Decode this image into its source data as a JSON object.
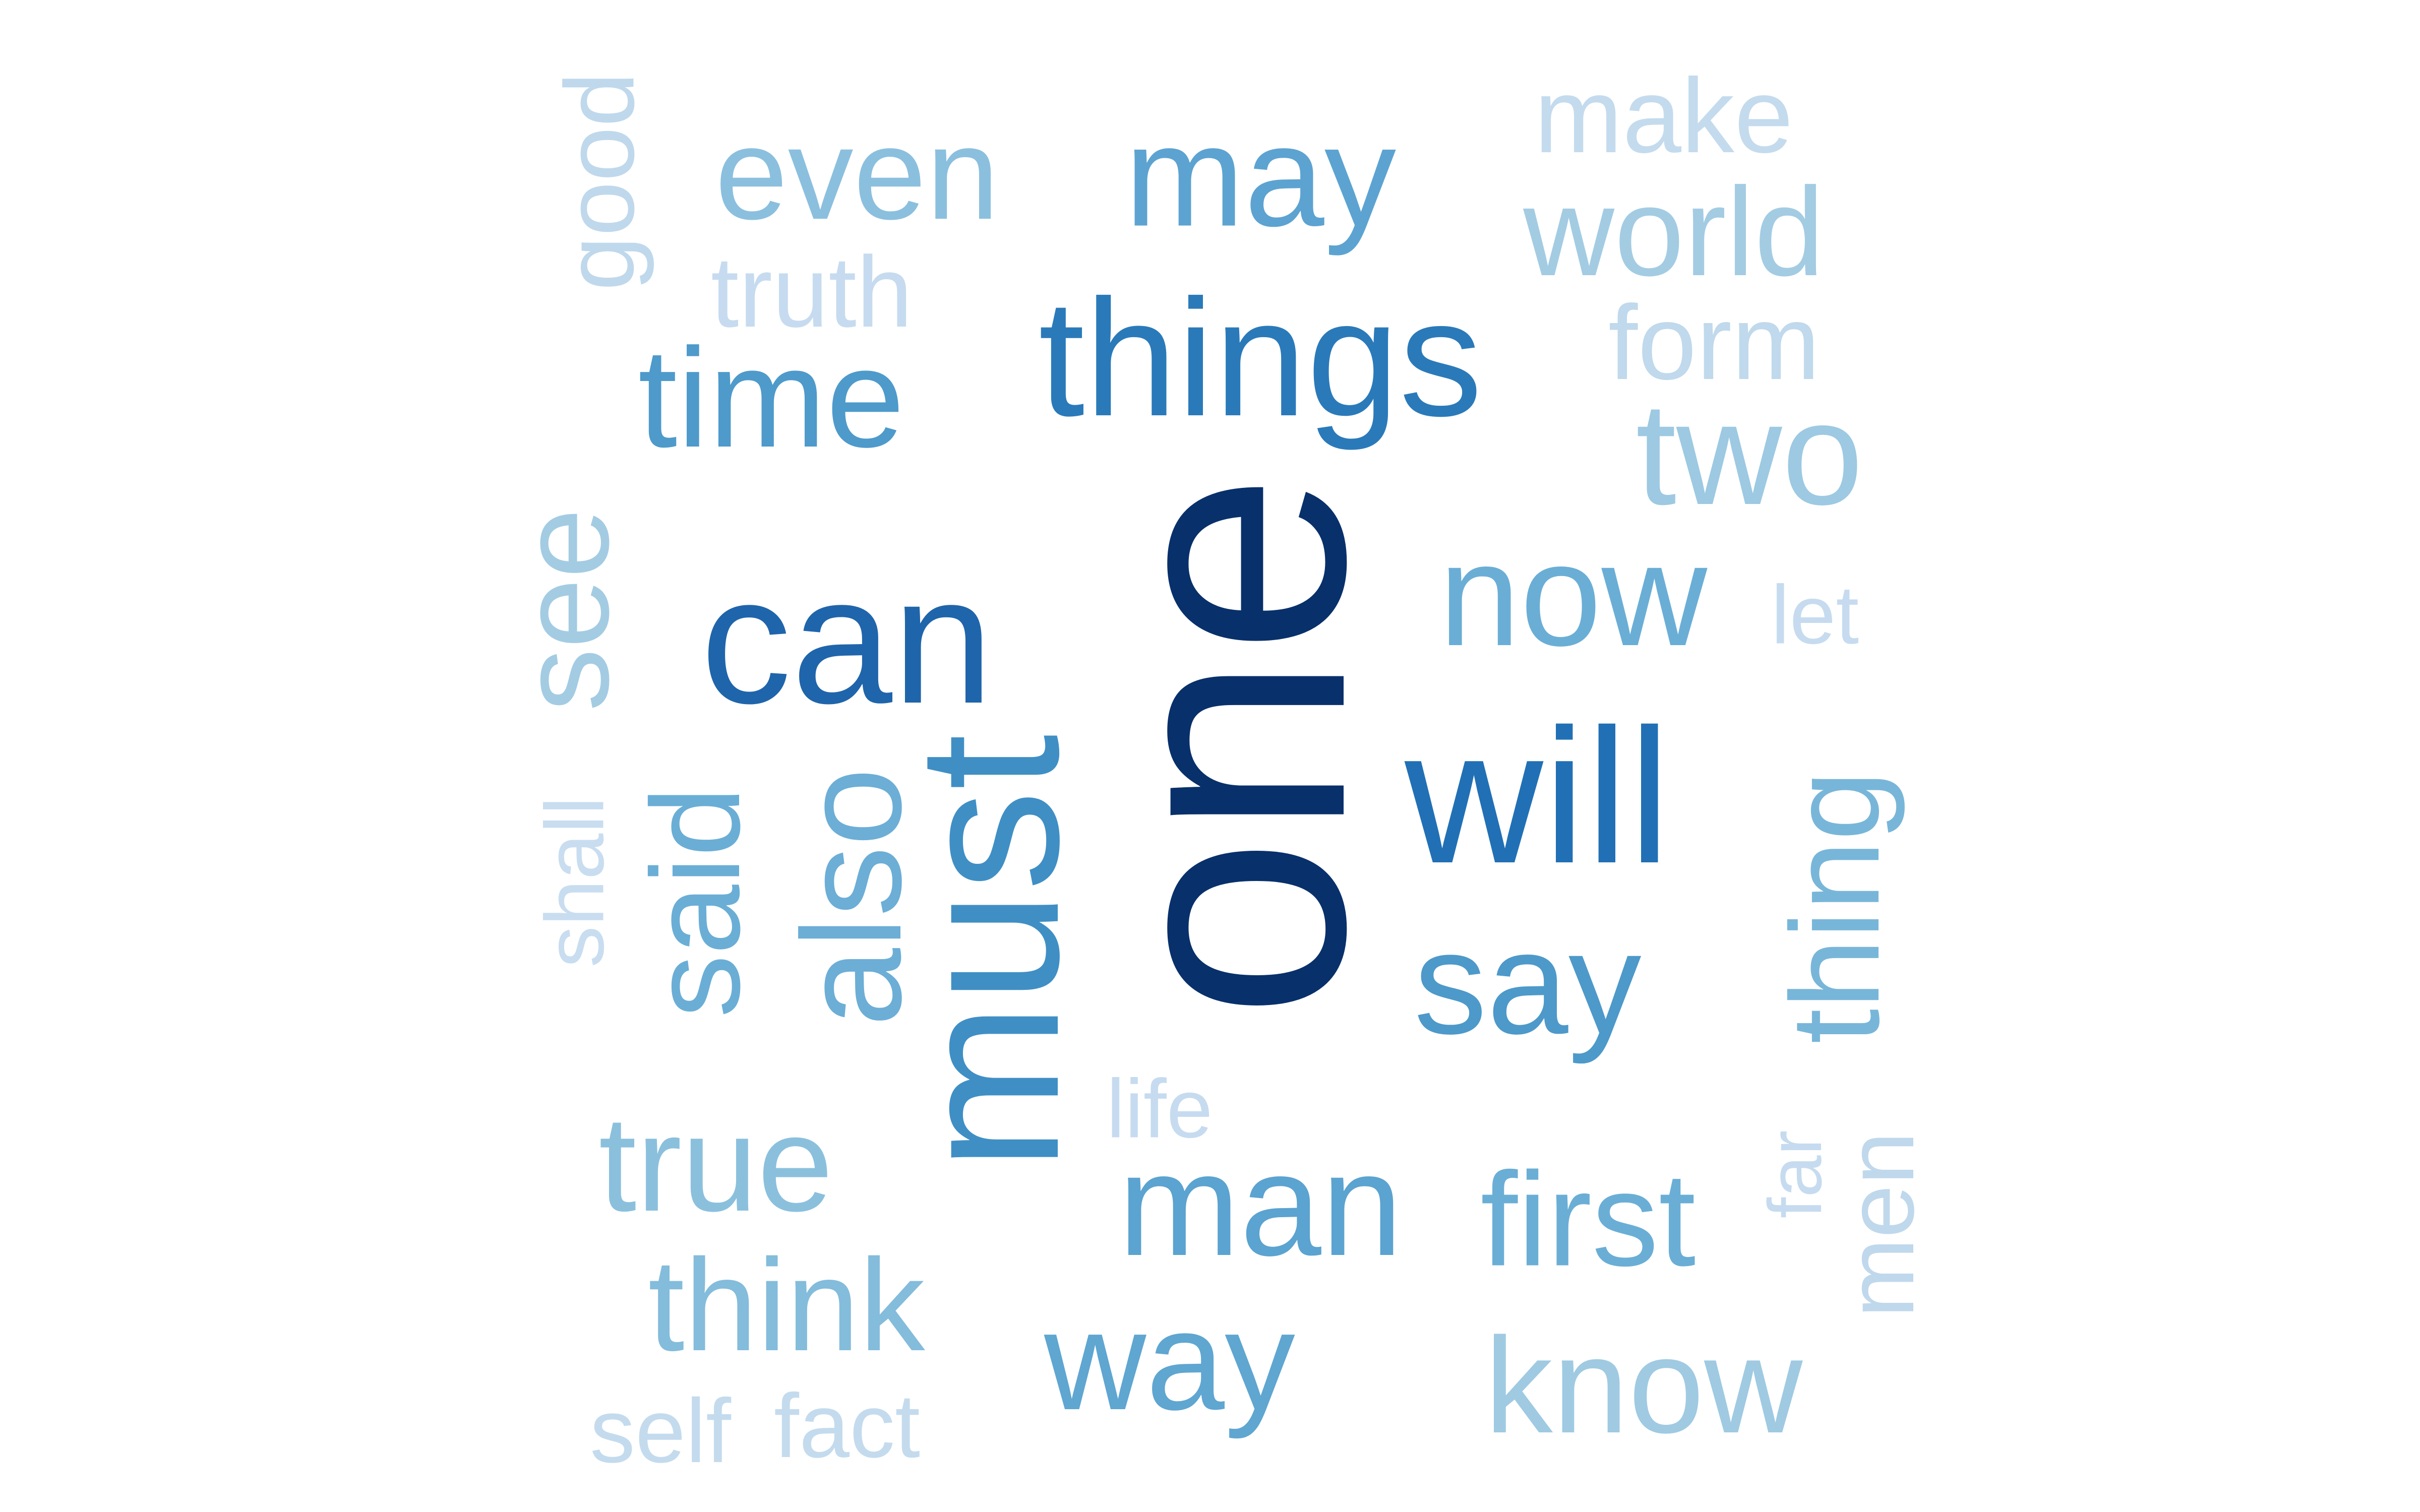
{
  "words": {
    "one": {
      "text": "one",
      "color": "#08306b"
    },
    "can": {
      "text": "can",
      "color": "#1f65ab"
    },
    "things": {
      "text": "things",
      "color": "#2a7aba"
    },
    "will": {
      "text": "will",
      "color": "#2170b5"
    },
    "must": {
      "text": "must",
      "color": "#3f8fc5"
    },
    "even": {
      "text": "even",
      "color": "#8bbfde"
    },
    "may": {
      "text": "may",
      "color": "#5ca3d1"
    },
    "time": {
      "text": "time",
      "color": "#4e9acb"
    },
    "two": {
      "text": "two",
      "color": "#9dc9e2"
    },
    "now": {
      "text": "now",
      "color": "#6aaed6"
    },
    "say": {
      "text": "say",
      "color": "#4d99ca"
    },
    "also": {
      "text": "also",
      "color": "#6caed6"
    },
    "said": {
      "text": "said",
      "color": "#6aaed6"
    },
    "thing": {
      "text": "thing",
      "color": "#78b6d9"
    },
    "man": {
      "text": "man",
      "color": "#5ba3d0"
    },
    "first": {
      "text": "first",
      "color": "#6aaed6"
    },
    "way": {
      "text": "way",
      "color": "#5fa6d1"
    },
    "know": {
      "text": "know",
      "color": "#9fcae2"
    },
    "true": {
      "text": "true",
      "color": "#8bc0dd"
    },
    "think": {
      "text": "think",
      "color": "#84bcdb"
    },
    "world": {
      "text": "world",
      "color": "#a3cce3"
    },
    "make": {
      "text": "make",
      "color": "#c4dbee"
    },
    "form": {
      "text": "form",
      "color": "#c0d9ec"
    },
    "truth": {
      "text": "truth",
      "color": "#c6dbef"
    },
    "good": {
      "text": "good",
      "color": "#bfd8ec"
    },
    "see": {
      "text": "see",
      "color": "#a3cce3"
    },
    "shall": {
      "text": "shall",
      "color": "#c9ddf0"
    },
    "let": {
      "text": "let",
      "color": "#c6dbef"
    },
    "life": {
      "text": "life",
      "color": "#c6dbef"
    },
    "far": {
      "text": "far",
      "color": "#c6dbef"
    },
    "men": {
      "text": "men",
      "color": "#c0d8ec"
    },
    "self": {
      "text": "self",
      "color": "#c4dbee"
    },
    "fact": {
      "text": "fact",
      "color": "#c4dbee"
    }
  }
}
